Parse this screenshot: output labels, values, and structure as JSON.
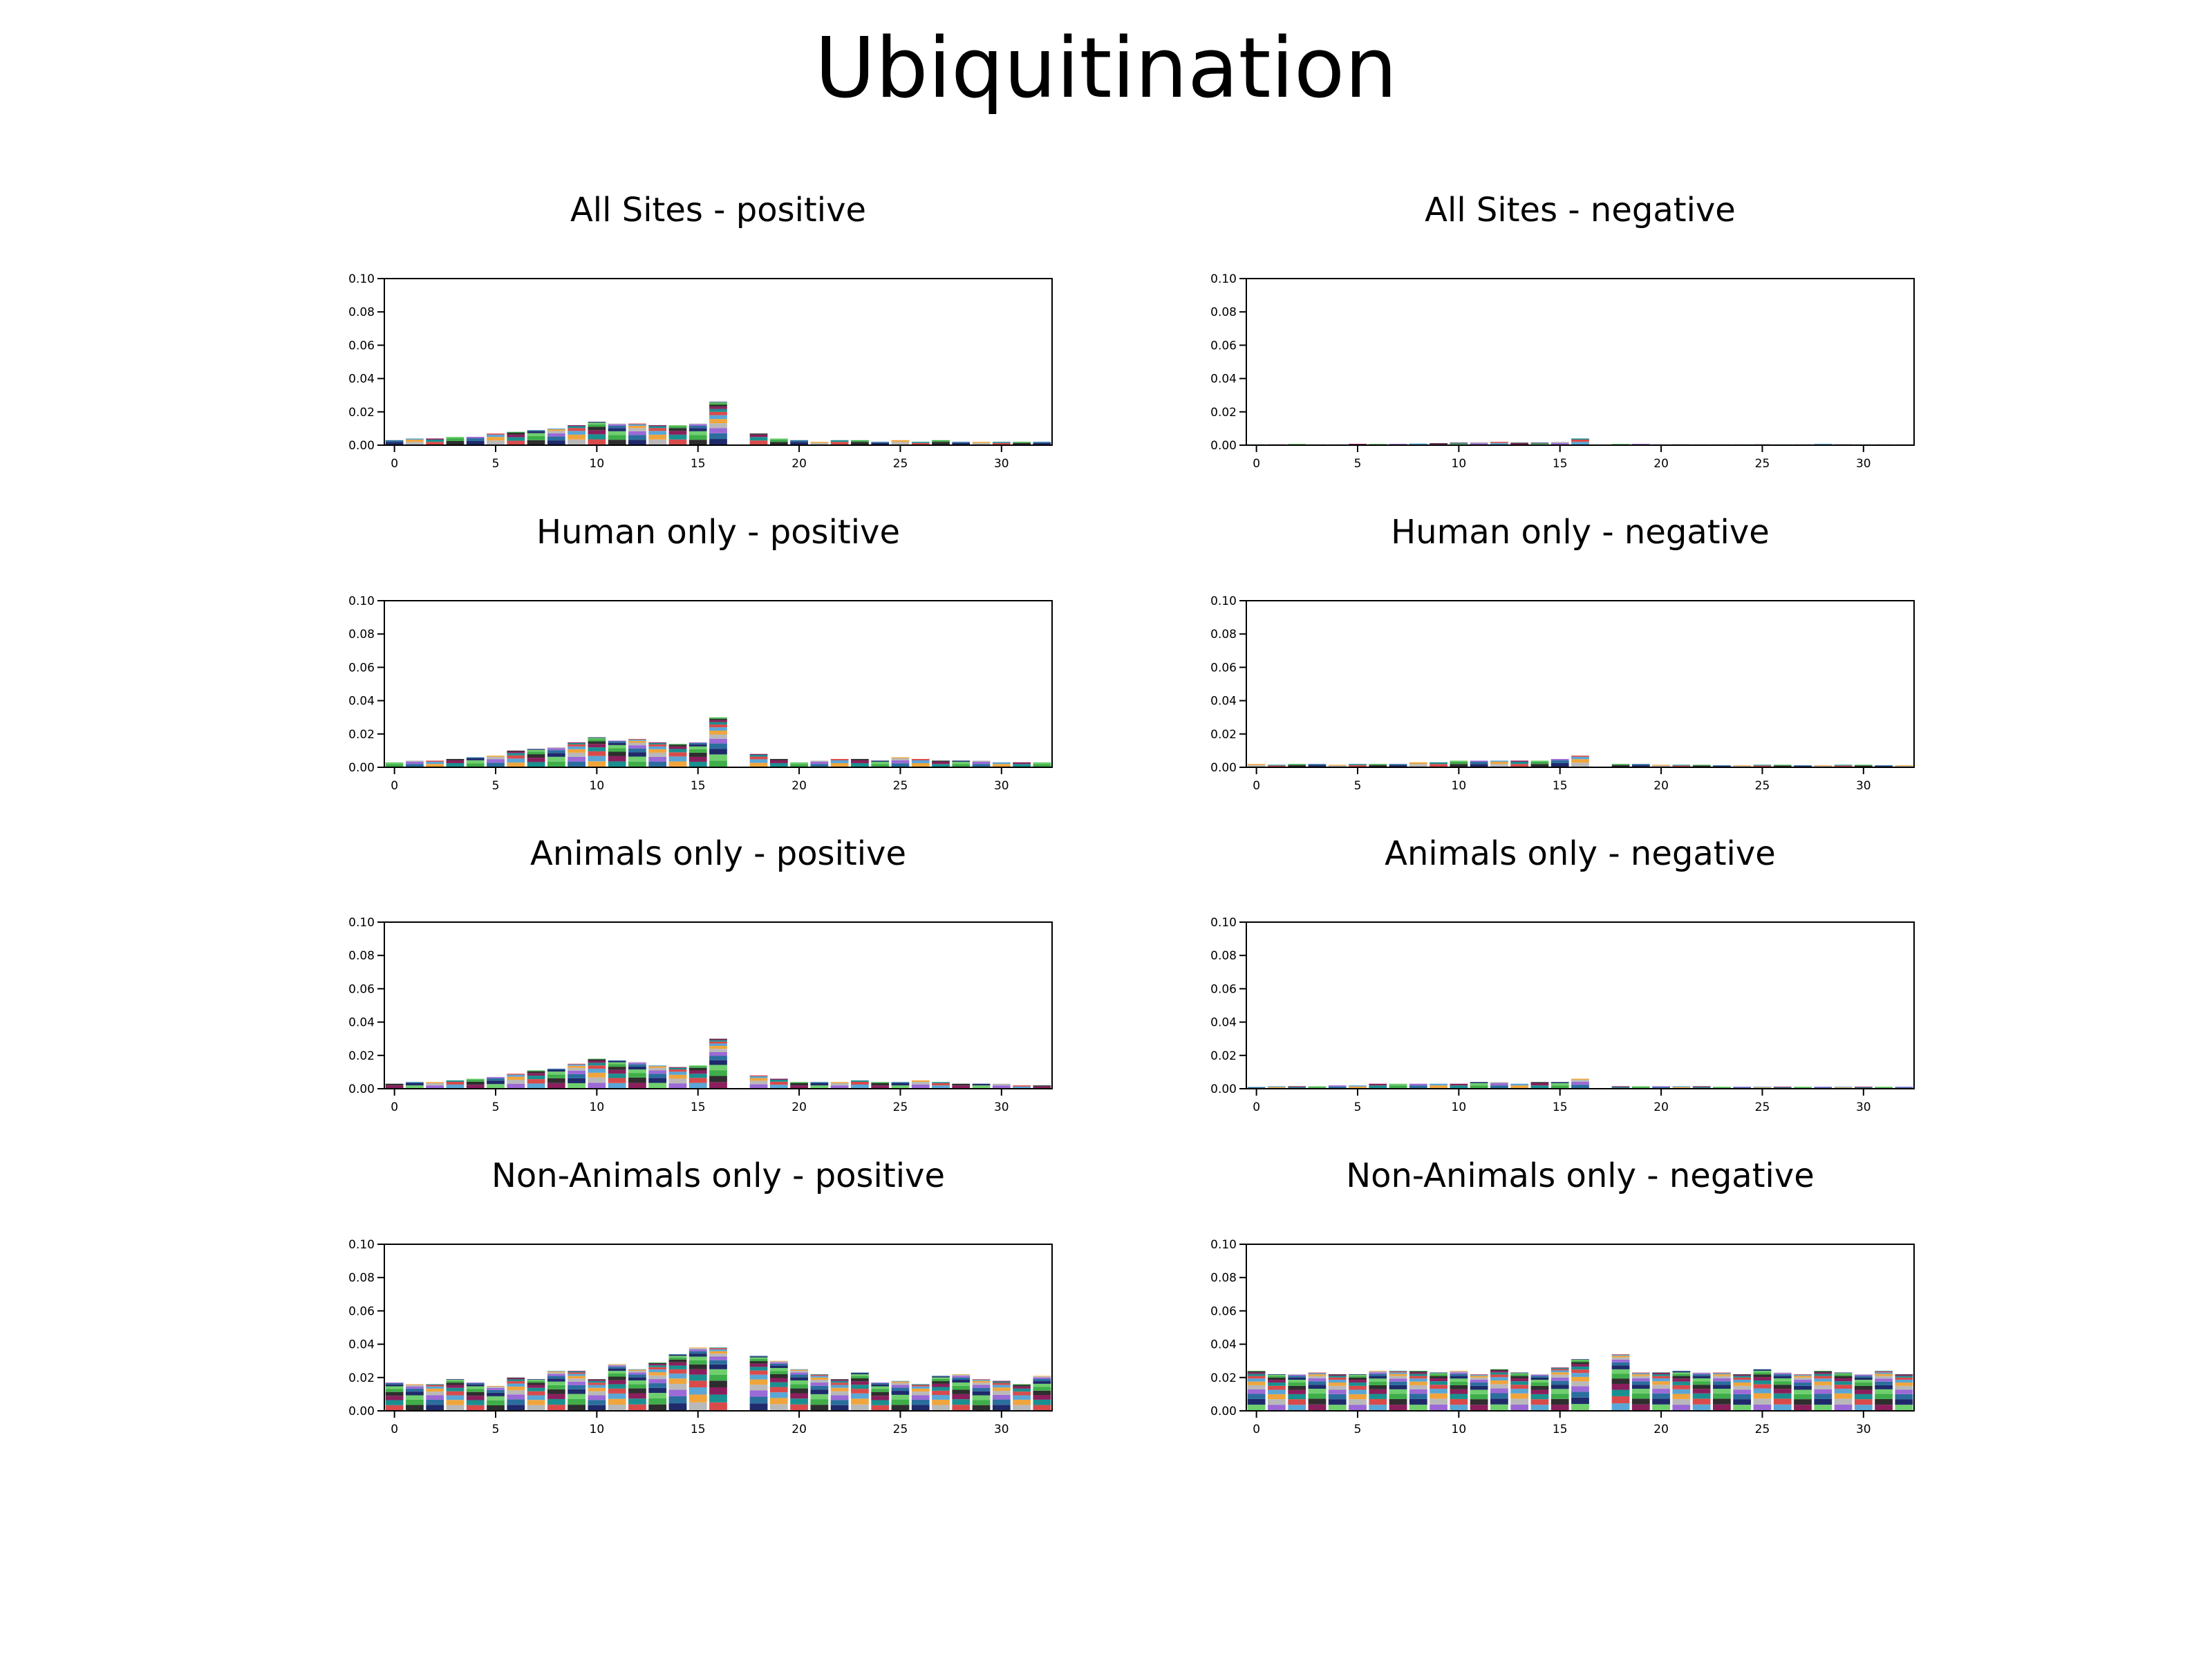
{
  "figure": {
    "title": "Ubiquitination"
  },
  "palette": [
    "#1f2a6b",
    "#5aa6d6",
    "#3fae49",
    "#b9b9b9",
    "#8a1f5c",
    "#2b6e9e",
    "#d94b4b",
    "#6fcf6f",
    "#f0a53c",
    "#2e2e2e",
    "#9b6ad6",
    "#1a8f8f"
  ],
  "chart_data": [
    {
      "type": "bar",
      "stacked_logo": true,
      "title": "All Sites - positive",
      "xlim": [
        -0.5,
        32.5
      ],
      "ylim": [
        0,
        0.1
      ],
      "xticks": [
        0,
        5,
        10,
        15,
        20,
        25,
        30
      ],
      "yticks": [
        "0.00",
        "0.02",
        "0.04",
        "0.06",
        "0.08",
        "0.10"
      ],
      "x": [
        0,
        1,
        2,
        3,
        4,
        5,
        6,
        7,
        8,
        9,
        10,
        11,
        12,
        13,
        14,
        15,
        16,
        17,
        18,
        19,
        20,
        21,
        22,
        23,
        24,
        25,
        26,
        27,
        28,
        29,
        30,
        31,
        32
      ],
      "values": [
        0.003,
        0.004,
        0.004,
        0.005,
        0.005,
        0.007,
        0.008,
        0.009,
        0.01,
        0.012,
        0.014,
        0.013,
        0.013,
        0.012,
        0.012,
        0.013,
        0.026,
        0.0,
        0.007,
        0.004,
        0.003,
        0.002,
        0.003,
        0.003,
        0.002,
        0.003,
        0.002,
        0.003,
        0.002,
        0.002,
        0.002,
        0.002,
        0.002
      ]
    },
    {
      "type": "bar",
      "stacked_logo": true,
      "title": "All Sites - negative",
      "xlim": [
        -0.5,
        32.5
      ],
      "ylim": [
        0,
        0.1
      ],
      "xticks": [
        0,
        5,
        10,
        15,
        20,
        25,
        30
      ],
      "yticks": [
        "0.00",
        "0.02",
        "0.04",
        "0.06",
        "0.08",
        "0.10"
      ],
      "x": [
        0,
        1,
        2,
        3,
        4,
        5,
        6,
        7,
        8,
        9,
        10,
        11,
        12,
        13,
        14,
        15,
        16,
        17,
        18,
        19,
        20,
        21,
        22,
        23,
        24,
        25,
        26,
        27,
        28,
        29,
        30,
        31,
        32
      ],
      "values": [
        0.0005,
        0.0005,
        0.0008,
        0.0005,
        0.0005,
        0.0008,
        0.0008,
        0.0008,
        0.001,
        0.0012,
        0.0015,
        0.0018,
        0.002,
        0.0015,
        0.0015,
        0.002,
        0.004,
        0.0,
        0.0008,
        0.0008,
        0.0005,
        0.0005,
        0.0005,
        0.0005,
        0.0005,
        0.0005,
        0.0005,
        0.0005,
        0.0008,
        0.0005,
        0.0005,
        0.0005,
        0.0005
      ]
    },
    {
      "type": "bar",
      "stacked_logo": true,
      "title": "Human only - positive",
      "xlim": [
        -0.5,
        32.5
      ],
      "ylim": [
        0,
        0.1
      ],
      "xticks": [
        0,
        5,
        10,
        15,
        20,
        25,
        30
      ],
      "yticks": [
        "0.00",
        "0.02",
        "0.04",
        "0.06",
        "0.08",
        "0.10"
      ],
      "x": [
        0,
        1,
        2,
        3,
        4,
        5,
        6,
        7,
        8,
        9,
        10,
        11,
        12,
        13,
        14,
        15,
        16,
        17,
        18,
        19,
        20,
        21,
        22,
        23,
        24,
        25,
        26,
        27,
        28,
        29,
        30,
        31,
        32
      ],
      "values": [
        0.003,
        0.004,
        0.004,
        0.005,
        0.006,
        0.007,
        0.01,
        0.011,
        0.012,
        0.015,
        0.018,
        0.016,
        0.017,
        0.015,
        0.014,
        0.015,
        0.03,
        0.0,
        0.008,
        0.005,
        0.003,
        0.004,
        0.005,
        0.005,
        0.004,
        0.006,
        0.005,
        0.004,
        0.004,
        0.004,
        0.003,
        0.003,
        0.003
      ]
    },
    {
      "type": "bar",
      "stacked_logo": true,
      "title": "Human only - negative",
      "xlim": [
        -0.5,
        32.5
      ],
      "ylim": [
        0,
        0.1
      ],
      "xticks": [
        0,
        5,
        10,
        15,
        20,
        25,
        30
      ],
      "yticks": [
        "0.00",
        "0.02",
        "0.04",
        "0.06",
        "0.08",
        "0.10"
      ],
      "x": [
        0,
        1,
        2,
        3,
        4,
        5,
        6,
        7,
        8,
        9,
        10,
        11,
        12,
        13,
        14,
        15,
        16,
        17,
        18,
        19,
        20,
        21,
        22,
        23,
        24,
        25,
        26,
        27,
        28,
        29,
        30,
        31,
        32
      ],
      "values": [
        0.002,
        0.0015,
        0.002,
        0.002,
        0.0015,
        0.002,
        0.002,
        0.002,
        0.003,
        0.003,
        0.004,
        0.004,
        0.004,
        0.004,
        0.004,
        0.005,
        0.007,
        0.0,
        0.002,
        0.002,
        0.0015,
        0.0015,
        0.0015,
        0.0012,
        0.0012,
        0.0015,
        0.0015,
        0.0012,
        0.0012,
        0.0015,
        0.0015,
        0.0012,
        0.0012
      ]
    },
    {
      "type": "bar",
      "stacked_logo": true,
      "title": "Animals only - positive",
      "xlim": [
        -0.5,
        32.5
      ],
      "ylim": [
        0,
        0.1
      ],
      "xticks": [
        0,
        5,
        10,
        15,
        20,
        25,
        30
      ],
      "yticks": [
        "0.00",
        "0.02",
        "0.04",
        "0.06",
        "0.08",
        "0.10"
      ],
      "x": [
        0,
        1,
        2,
        3,
        4,
        5,
        6,
        7,
        8,
        9,
        10,
        11,
        12,
        13,
        14,
        15,
        16,
        17,
        18,
        19,
        20,
        21,
        22,
        23,
        24,
        25,
        26,
        27,
        28,
        29,
        30,
        31,
        32
      ],
      "values": [
        0.003,
        0.004,
        0.004,
        0.005,
        0.006,
        0.007,
        0.009,
        0.011,
        0.012,
        0.015,
        0.018,
        0.017,
        0.016,
        0.014,
        0.013,
        0.014,
        0.03,
        0.0,
        0.008,
        0.006,
        0.004,
        0.004,
        0.004,
        0.005,
        0.004,
        0.004,
        0.005,
        0.004,
        0.003,
        0.003,
        0.003,
        0.002,
        0.002
      ]
    },
    {
      "type": "bar",
      "stacked_logo": true,
      "title": "Animals only - negative",
      "xlim": [
        -0.5,
        32.5
      ],
      "ylim": [
        0,
        0.1
      ],
      "xticks": [
        0,
        5,
        10,
        15,
        20,
        25,
        30
      ],
      "yticks": [
        "0.00",
        "0.02",
        "0.04",
        "0.06",
        "0.08",
        "0.10"
      ],
      "x": [
        0,
        1,
        2,
        3,
        4,
        5,
        6,
        7,
        8,
        9,
        10,
        11,
        12,
        13,
        14,
        15,
        16,
        17,
        18,
        19,
        20,
        21,
        22,
        23,
        24,
        25,
        26,
        27,
        28,
        29,
        30,
        31,
        32
      ],
      "values": [
        0.001,
        0.0015,
        0.0015,
        0.0015,
        0.002,
        0.002,
        0.003,
        0.003,
        0.003,
        0.003,
        0.003,
        0.004,
        0.004,
        0.003,
        0.004,
        0.004,
        0.006,
        0.0,
        0.0015,
        0.0015,
        0.0015,
        0.0015,
        0.0015,
        0.0012,
        0.0012,
        0.0012,
        0.0012,
        0.0012,
        0.0012,
        0.0012,
        0.0012,
        0.0012,
        0.0012
      ]
    },
    {
      "type": "bar",
      "stacked_logo": true,
      "title": "Non-Animals only - positive",
      "xlim": [
        -0.5,
        32.5
      ],
      "ylim": [
        0,
        0.1
      ],
      "xticks": [
        0,
        5,
        10,
        15,
        20,
        25,
        30
      ],
      "yticks": [
        "0.00",
        "0.02",
        "0.04",
        "0.06",
        "0.08",
        "0.10"
      ],
      "x": [
        0,
        1,
        2,
        3,
        4,
        5,
        6,
        7,
        8,
        9,
        10,
        11,
        12,
        13,
        14,
        15,
        16,
        17,
        18,
        19,
        20,
        21,
        22,
        23,
        24,
        25,
        26,
        27,
        28,
        29,
        30,
        31,
        32
      ],
      "values": [
        0.017,
        0.016,
        0.016,
        0.019,
        0.017,
        0.015,
        0.02,
        0.019,
        0.024,
        0.024,
        0.019,
        0.028,
        0.025,
        0.029,
        0.034,
        0.038,
        0.038,
        0.0,
        0.033,
        0.03,
        0.025,
        0.022,
        0.019,
        0.023,
        0.017,
        0.018,
        0.016,
        0.021,
        0.022,
        0.019,
        0.018,
        0.016,
        0.021
      ]
    },
    {
      "type": "bar",
      "stacked_logo": true,
      "title": "Non-Animals only - negative",
      "xlim": [
        -0.5,
        32.5
      ],
      "ylim": [
        0,
        0.1
      ],
      "xticks": [
        0,
        5,
        10,
        15,
        20,
        25,
        30
      ],
      "yticks": [
        "0.00",
        "0.02",
        "0.04",
        "0.06",
        "0.08",
        "0.10"
      ],
      "x": [
        0,
        1,
        2,
        3,
        4,
        5,
        6,
        7,
        8,
        9,
        10,
        11,
        12,
        13,
        14,
        15,
        16,
        17,
        18,
        19,
        20,
        21,
        22,
        23,
        24,
        25,
        26,
        27,
        28,
        29,
        30,
        31,
        32
      ],
      "values": [
        0.024,
        0.022,
        0.022,
        0.023,
        0.022,
        0.022,
        0.024,
        0.024,
        0.024,
        0.023,
        0.024,
        0.022,
        0.025,
        0.023,
        0.022,
        0.026,
        0.031,
        0.0,
        0.034,
        0.023,
        0.023,
        0.024,
        0.023,
        0.023,
        0.022,
        0.025,
        0.023,
        0.022,
        0.024,
        0.023,
        0.022,
        0.024,
        0.022
      ]
    }
  ]
}
